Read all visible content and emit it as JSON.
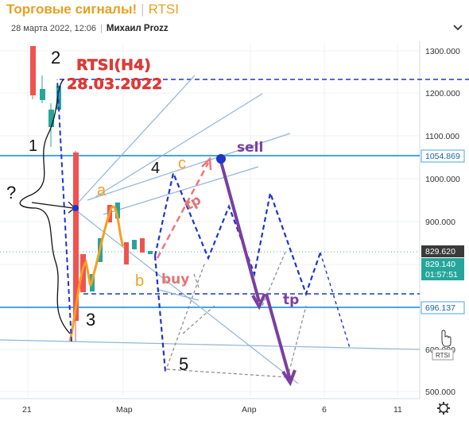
{
  "header": {
    "title": "Торговые сигналы!",
    "ticker": "RTSI",
    "date": "28 марта 2022, 12:06",
    "author": "Михаил Prozz"
  },
  "chart": {
    "price_axis": [
      "1300.000",
      "1200.000",
      "1100.000",
      "1000.000",
      "900.000",
      "800.000",
      "700.000",
      "600.000",
      "500.000"
    ],
    "price_tags": {
      "level_high": "1054.869",
      "current": "829.620",
      "last": "829.140",
      "countdown": "01:57:51",
      "level_low": "696.137"
    },
    "time_axis": [
      "21",
      "Мар",
      "Апр",
      "6",
      "11"
    ],
    "symbol_badge": "RTSI",
    "annotations": {
      "symbol_tf": "RTSI(H4)",
      "date": "28.03.2022",
      "sell": "sell",
      "buy": "buy",
      "tp1": "tp",
      "tp2": "tp",
      "wave1": "1",
      "wave2": "2",
      "wave3": "3",
      "wave4": "4",
      "wave5": "5",
      "wave_a": "a",
      "wave_b": "b",
      "wave_c": "c",
      "question": "?"
    },
    "colors": {
      "up_candle": "#26a69a",
      "down_candle": "#ef5350",
      "level_line": "#42a5f5",
      "dashed_blue": "#1e35c8",
      "trend_lines": "#90b4d8",
      "purple": "#7b3fa0",
      "orange": "#f5a020",
      "red_note": "#e53935"
    }
  }
}
